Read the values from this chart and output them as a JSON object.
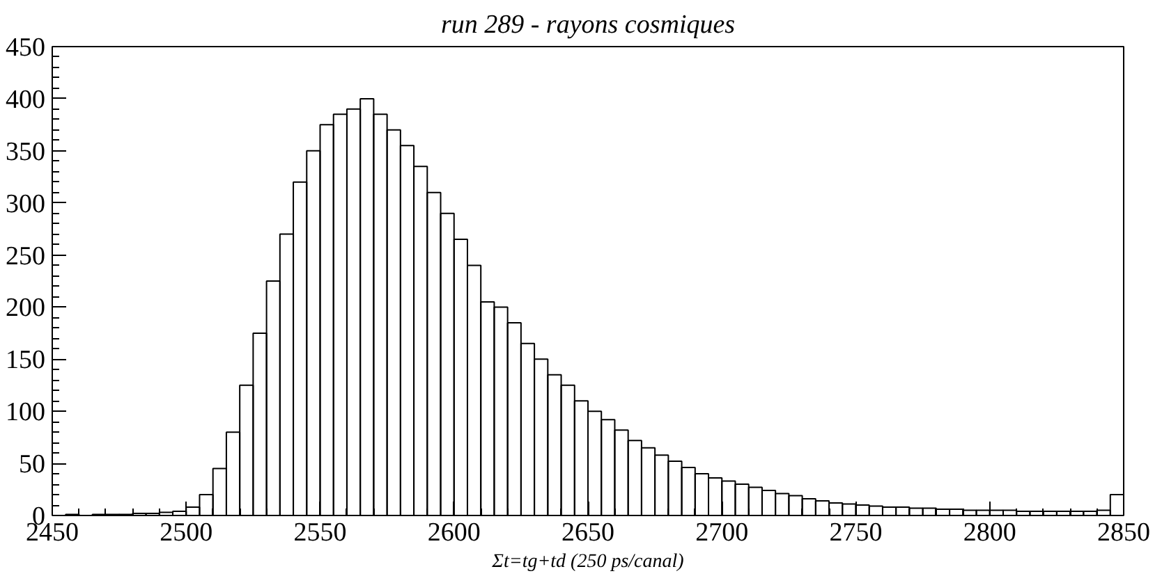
{
  "chart_data": {
    "type": "histogram",
    "title": "run 289 - rayons cosmiques",
    "xlabel": "Σt=tg+td (250 ps/canal)",
    "bins": [
      2450,
      2455,
      2460,
      2465,
      2470,
      2475,
      2480,
      2485,
      2490,
      2495,
      2500,
      2505,
      2510,
      2515,
      2520,
      2525,
      2530,
      2535,
      2540,
      2545,
      2550,
      2555,
      2560,
      2565,
      2570,
      2575,
      2580,
      2585,
      2590,
      2595,
      2600,
      2605,
      2610,
      2615,
      2620,
      2625,
      2630,
      2635,
      2640,
      2645,
      2650,
      2655,
      2660,
      2665,
      2670,
      2675,
      2680,
      2685,
      2690,
      2695,
      2700,
      2705,
      2710,
      2715,
      2720,
      2725,
      2730,
      2735,
      2740,
      2745,
      2750,
      2755,
      2760,
      2765,
      2770,
      2775,
      2780,
      2785,
      2790,
      2795,
      2800,
      2805,
      2810,
      2815,
      2820,
      2825,
      2830,
      2835,
      2840,
      2845,
      2850
    ],
    "values": [
      0,
      1,
      0,
      1,
      1,
      1,
      2,
      2,
      3,
      4,
      8,
      20,
      45,
      80,
      125,
      175,
      225,
      270,
      320,
      350,
      375,
      385,
      390,
      400,
      385,
      370,
      355,
      335,
      310,
      290,
      265,
      240,
      205,
      200,
      185,
      165,
      150,
      135,
      125,
      110,
      100,
      92,
      82,
      72,
      65,
      58,
      52,
      46,
      40,
      36,
      33,
      30,
      27,
      24,
      21,
      19,
      16,
      14,
      12,
      11,
      10,
      9,
      8,
      8,
      7,
      7,
      6,
      6,
      5,
      5,
      5,
      5,
      4,
      4,
      4,
      4,
      4,
      4,
      5,
      20
    ],
    "color": "#000000",
    "xlim": [
      2450,
      2850
    ],
    "ylim": [
      0,
      450
    ],
    "xticks": [
      2450,
      2500,
      2550,
      2600,
      2650,
      2700,
      2750,
      2800,
      2850
    ],
    "yticks": [
      0,
      50,
      100,
      150,
      200,
      250,
      300,
      350,
      400,
      450
    ],
    "grid": false
  }
}
